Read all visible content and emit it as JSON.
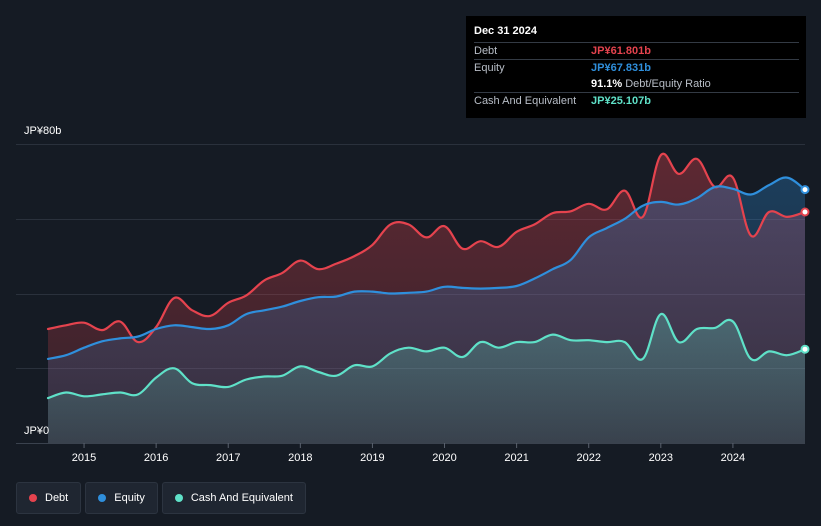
{
  "tooltip": {
    "date": "Dec 31 2024",
    "debt_label": "Debt",
    "debt_value": "JP¥61.801b",
    "equity_label": "Equity",
    "equity_value": "JP¥67.831b",
    "ratio_value": "91.1%",
    "ratio_label": "Debt/Equity Ratio",
    "cash_label": "Cash And Equivalent",
    "cash_value": "JP¥25.107b"
  },
  "legend": {
    "debt": "Debt",
    "equity": "Equity",
    "cash": "Cash And Equivalent"
  },
  "colors": {
    "debt": "#e5434e",
    "equity": "#2f8fdc",
    "cash": "#5fe1c8",
    "background": "#151b24"
  },
  "chart_data": {
    "type": "area",
    "y_unit": "JP¥ billions",
    "ylim": [
      0,
      80
    ],
    "y_tick_labels": [
      "JP¥0",
      "JP¥80b"
    ],
    "x_tick_labels": [
      "2015",
      "2016",
      "2017",
      "2018",
      "2019",
      "2020",
      "2021",
      "2022",
      "2023",
      "2024"
    ],
    "xlim": [
      2014.5,
      2025.0
    ],
    "grid": true,
    "legend_position": "bottom-left",
    "series": [
      {
        "name": "Debt",
        "color": "#e5434e",
        "points": [
          [
            2014.5,
            30.5
          ],
          [
            2014.75,
            31.5
          ],
          [
            2015.0,
            32.2
          ],
          [
            2015.25,
            30.2
          ],
          [
            2015.5,
            32.5
          ],
          [
            2015.75,
            27.0
          ],
          [
            2016.0,
            31.0
          ],
          [
            2016.25,
            38.8
          ],
          [
            2016.5,
            35.5
          ],
          [
            2016.75,
            34.0
          ],
          [
            2017.0,
            37.5
          ],
          [
            2017.25,
            39.5
          ],
          [
            2017.5,
            43.5
          ],
          [
            2017.75,
            45.5
          ],
          [
            2018.0,
            48.8
          ],
          [
            2018.25,
            46.5
          ],
          [
            2018.5,
            48.0
          ],
          [
            2018.75,
            50.0
          ],
          [
            2019.0,
            53.0
          ],
          [
            2019.25,
            58.5
          ],
          [
            2019.5,
            58.5
          ],
          [
            2019.75,
            55.0
          ],
          [
            2020.0,
            58.0
          ],
          [
            2020.25,
            52.0
          ],
          [
            2020.5,
            54.0
          ],
          [
            2020.75,
            52.5
          ],
          [
            2021.0,
            56.5
          ],
          [
            2021.25,
            58.5
          ],
          [
            2021.5,
            61.5
          ],
          [
            2021.75,
            62.0
          ],
          [
            2022.0,
            64.0
          ],
          [
            2022.25,
            62.5
          ],
          [
            2022.5,
            67.5
          ],
          [
            2022.75,
            60.5
          ],
          [
            2023.0,
            77.0
          ],
          [
            2023.25,
            72.0
          ],
          [
            2023.5,
            76.0
          ],
          [
            2023.75,
            68.5
          ],
          [
            2024.0,
            71.0
          ],
          [
            2024.25,
            55.5
          ],
          [
            2024.5,
            61.8
          ],
          [
            2024.75,
            60.5
          ],
          [
            2025.0,
            61.8
          ]
        ]
      },
      {
        "name": "Equity",
        "color": "#2f8fdc",
        "points": [
          [
            2014.5,
            22.5
          ],
          [
            2014.75,
            23.5
          ],
          [
            2015.0,
            25.5
          ],
          [
            2015.25,
            27.2
          ],
          [
            2015.5,
            28.0
          ],
          [
            2015.75,
            28.5
          ],
          [
            2016.0,
            30.5
          ],
          [
            2016.25,
            31.5
          ],
          [
            2016.5,
            31.0
          ],
          [
            2016.75,
            30.5
          ],
          [
            2017.0,
            31.5
          ],
          [
            2017.25,
            34.5
          ],
          [
            2017.5,
            35.5
          ],
          [
            2017.75,
            36.5
          ],
          [
            2018.0,
            38.0
          ],
          [
            2018.25,
            39.0
          ],
          [
            2018.5,
            39.2
          ],
          [
            2018.75,
            40.5
          ],
          [
            2019.0,
            40.5
          ],
          [
            2019.25,
            40.0
          ],
          [
            2019.5,
            40.2
          ],
          [
            2019.75,
            40.5
          ],
          [
            2020.0,
            41.8
          ],
          [
            2020.25,
            41.5
          ],
          [
            2020.5,
            41.3
          ],
          [
            2020.75,
            41.5
          ],
          [
            2021.0,
            42.0
          ],
          [
            2021.25,
            44.0
          ],
          [
            2021.5,
            46.5
          ],
          [
            2021.75,
            49.0
          ],
          [
            2022.0,
            55.0
          ],
          [
            2022.25,
            57.5
          ],
          [
            2022.5,
            60.0
          ],
          [
            2022.75,
            63.5
          ],
          [
            2023.0,
            64.5
          ],
          [
            2023.25,
            63.8
          ],
          [
            2023.5,
            65.5
          ],
          [
            2023.75,
            68.5
          ],
          [
            2024.0,
            68.0
          ],
          [
            2024.25,
            66.5
          ],
          [
            2024.5,
            69.0
          ],
          [
            2024.75,
            71.0
          ],
          [
            2025.0,
            67.8
          ]
        ]
      },
      {
        "name": "Cash And Equivalent",
        "color": "#5fe1c8",
        "points": [
          [
            2014.5,
            12.0
          ],
          [
            2014.75,
            13.5
          ],
          [
            2015.0,
            12.5
          ],
          [
            2015.25,
            13.0
          ],
          [
            2015.5,
            13.5
          ],
          [
            2015.75,
            13.0
          ],
          [
            2016.0,
            17.5
          ],
          [
            2016.25,
            20.0
          ],
          [
            2016.5,
            16.0
          ],
          [
            2016.75,
            15.5
          ],
          [
            2017.0,
            15.0
          ],
          [
            2017.25,
            17.0
          ],
          [
            2017.5,
            17.8
          ],
          [
            2017.75,
            18.0
          ],
          [
            2018.0,
            20.5
          ],
          [
            2018.25,
            19.0
          ],
          [
            2018.5,
            18.0
          ],
          [
            2018.75,
            20.8
          ],
          [
            2019.0,
            20.5
          ],
          [
            2019.25,
            24.0
          ],
          [
            2019.5,
            25.5
          ],
          [
            2019.75,
            24.5
          ],
          [
            2020.0,
            25.5
          ],
          [
            2020.25,
            23.0
          ],
          [
            2020.5,
            27.0
          ],
          [
            2020.75,
            25.5
          ],
          [
            2021.0,
            27.0
          ],
          [
            2021.25,
            27.0
          ],
          [
            2021.5,
            29.0
          ],
          [
            2021.75,
            27.5
          ],
          [
            2022.0,
            27.5
          ],
          [
            2022.25,
            27.0
          ],
          [
            2022.5,
            27.0
          ],
          [
            2022.75,
            22.5
          ],
          [
            2023.0,
            34.5
          ],
          [
            2023.25,
            27.0
          ],
          [
            2023.5,
            30.5
          ],
          [
            2023.75,
            30.8
          ],
          [
            2024.0,
            32.5
          ],
          [
            2024.25,
            22.5
          ],
          [
            2024.5,
            24.5
          ],
          [
            2024.75,
            23.5
          ],
          [
            2025.0,
            25.1
          ]
        ]
      }
    ]
  }
}
